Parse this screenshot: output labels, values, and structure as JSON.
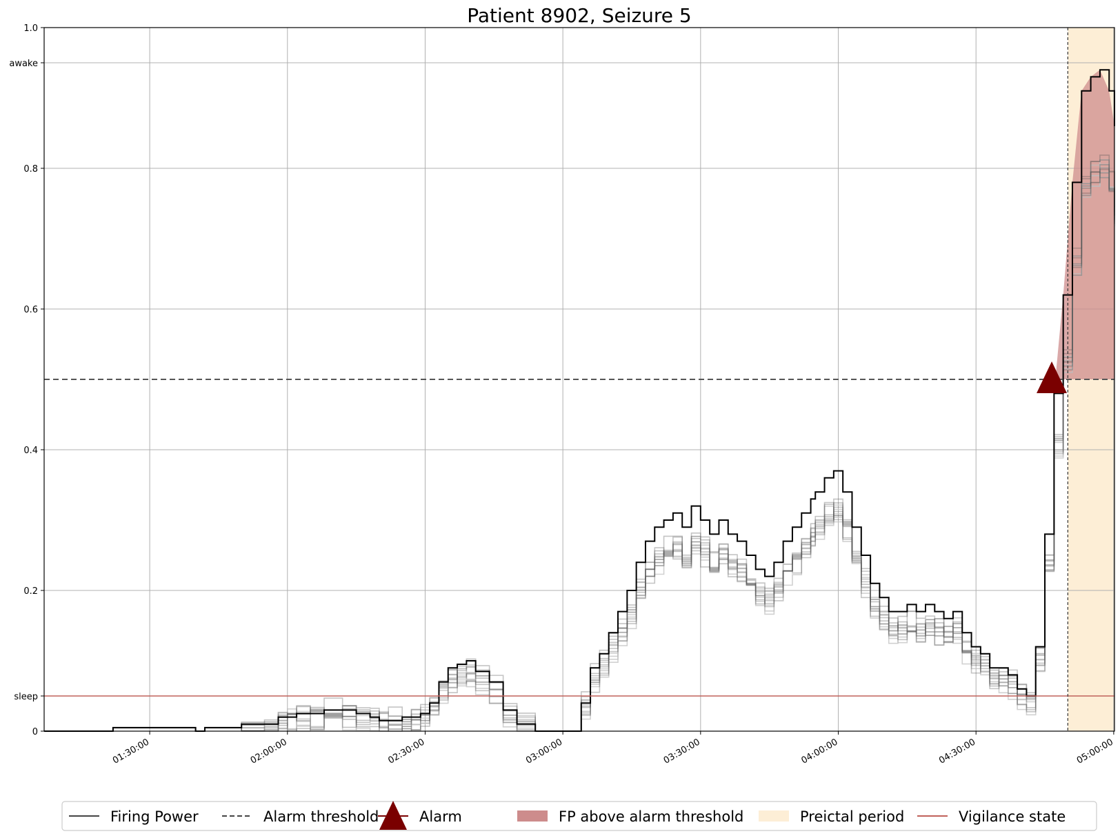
{
  "chart_data": {
    "type": "line",
    "title": "Patient 8902, Seizure 5",
    "xlabel": "",
    "ylabel": "",
    "x_unit": "time of day (hh:mm:ss)",
    "xlim": [
      "01:07:00",
      "05:00:10"
    ],
    "ylim": [
      0,
      1.0
    ],
    "grid": true,
    "x_ticks": [
      "01:30:00",
      "02:00:00",
      "02:30:00",
      "03:00:00",
      "03:30:00",
      "04:00:00",
      "04:30:00",
      "05:00:00"
    ],
    "y_ticks": [
      {
        "value": 0,
        "label": "0"
      },
      {
        "value": 0.05,
        "label": "sleep"
      },
      {
        "value": 0.2,
        "label": "0.2"
      },
      {
        "value": 0.4,
        "label": "0.4"
      },
      {
        "value": 0.6,
        "label": "0.6"
      },
      {
        "value": 0.8,
        "label": "0.8"
      },
      {
        "value": 0.95,
        "label": "awake"
      },
      {
        "value": 1.0,
        "label": "1.0"
      }
    ],
    "alarm_threshold": 0.5,
    "vigilance_state": {
      "time": [
        "01:07:00",
        "05:00:10"
      ],
      "value": [
        0.05,
        0.05
      ]
    },
    "preictal_period": {
      "start": "04:50:00",
      "end": "05:00:10"
    },
    "alarm": {
      "time": "04:46:30",
      "value": 0.5
    },
    "series": [
      {
        "name": "Firing Power",
        "time": [
          "01:07:00",
          "01:20:00",
          "01:22:00",
          "01:24:00",
          "01:35:00",
          "01:40:00",
          "01:42:00",
          "01:48:00",
          "01:50:00",
          "01:55:00",
          "01:58:00",
          "02:00:00",
          "02:02:00",
          "02:05:00",
          "02:08:00",
          "02:12:00",
          "02:15:00",
          "02:18:00",
          "02:20:00",
          "02:22:00",
          "02:25:00",
          "02:27:00",
          "02:29:00",
          "02:31:00",
          "02:33:00",
          "02:35:00",
          "02:37:00",
          "02:39:00",
          "02:41:00",
          "02:44:00",
          "02:47:00",
          "02:50:00",
          "02:54:00",
          "02:58:00",
          "03:02:00",
          "03:04:00",
          "03:06:00",
          "03:08:00",
          "03:10:00",
          "03:12:00",
          "03:14:00",
          "03:16:00",
          "03:18:00",
          "03:20:00",
          "03:22:00",
          "03:24:00",
          "03:26:00",
          "03:28:00",
          "03:30:00",
          "03:32:00",
          "03:34:00",
          "03:36:00",
          "03:38:00",
          "03:40:00",
          "03:42:00",
          "03:44:00",
          "03:46:00",
          "03:48:00",
          "03:50:00",
          "03:52:00",
          "03:54:00",
          "03:55:00",
          "03:57:00",
          "03:59:00",
          "04:01:00",
          "04:03:00",
          "04:05:00",
          "04:07:00",
          "04:09:00",
          "04:11:00",
          "04:13:00",
          "04:15:00",
          "04:17:00",
          "04:19:00",
          "04:21:00",
          "04:23:00",
          "04:25:00",
          "04:27:00",
          "04:29:00",
          "04:31:00",
          "04:33:00",
          "04:35:00",
          "04:37:00",
          "04:39:00",
          "04:41:00",
          "04:43:00",
          "04:45:00",
          "04:47:00",
          "04:49:00",
          "04:51:00",
          "04:53:00",
          "04:55:00",
          "04:57:00",
          "04:59:00",
          "05:00:10"
        ],
        "values": [
          0,
          0,
          0.005,
          0.005,
          0.005,
          0,
          0.005,
          0.005,
          0.01,
          0.01,
          0.02,
          0.02,
          0.025,
          0.025,
          0.03,
          0.03,
          0.025,
          0.02,
          0.015,
          0.015,
          0.02,
          0.02,
          0.025,
          0.04,
          0.07,
          0.09,
          0.095,
          0.1,
          0.085,
          0.07,
          0.03,
          0.01,
          0,
          0,
          0,
          0.04,
          0.09,
          0.11,
          0.14,
          0.17,
          0.2,
          0.24,
          0.27,
          0.29,
          0.3,
          0.31,
          0.29,
          0.32,
          0.3,
          0.28,
          0.3,
          0.28,
          0.27,
          0.25,
          0.23,
          0.22,
          0.24,
          0.27,
          0.29,
          0.31,
          0.33,
          0.34,
          0.36,
          0.37,
          0.34,
          0.29,
          0.25,
          0.21,
          0.19,
          0.17,
          0.17,
          0.18,
          0.17,
          0.18,
          0.17,
          0.16,
          0.17,
          0.14,
          0.12,
          0.11,
          0.09,
          0.09,
          0.08,
          0.06,
          0.05,
          0.12,
          0.28,
          0.48,
          0.62,
          0.78,
          0.91,
          0.93,
          0.94,
          0.91,
          0.86
        ]
      }
    ]
  },
  "legend": {
    "items": [
      {
        "label": "Firing Power"
      },
      {
        "label": "Alarm threshold"
      },
      {
        "label": "Alarm"
      },
      {
        "label": "FP above alarm threshold"
      },
      {
        "label": "Preictal period"
      },
      {
        "label": "Vigilance state"
      }
    ],
    "placement": "bottom-center"
  },
  "colors": {
    "firing_power": "#000000",
    "firing_power_ensemble": "#b8b8b8",
    "alarm_threshold": "#555555",
    "alarm_marker": "#7a0000",
    "fp_above_threshold": "#cd8c8c",
    "preictal_fill": "#fdeed6",
    "vigilance_state": "#c0605a",
    "grid": "#b0b0b0"
  }
}
